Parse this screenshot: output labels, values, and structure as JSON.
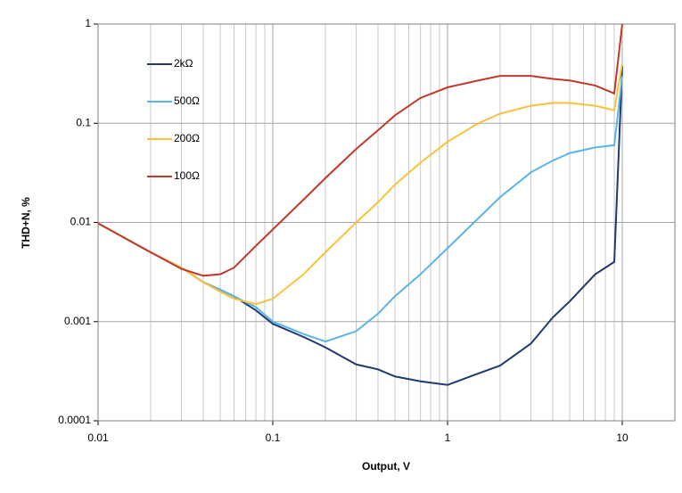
{
  "chart_data": {
    "type": "line",
    "log_x": true,
    "log_y": true,
    "grid": true,
    "x_minor_grid": true,
    "legend": "upper left",
    "xlabel": "Output, V",
    "ylabel": "THD+N, %",
    "xlim": [
      0.01,
      20
    ],
    "xticks": [
      0.01,
      0.1,
      1,
      10
    ],
    "ylim": [
      0.0001,
      1
    ],
    "yticks": [
      0.0001,
      0.001,
      0.01,
      0.1,
      1
    ],
    "x": [
      0.01,
      0.02,
      0.03,
      0.04,
      0.05,
      0.06,
      0.08,
      0.1,
      0.15,
      0.2,
      0.3,
      0.4,
      0.5,
      0.7,
      1,
      1.5,
      2,
      3,
      4,
      5,
      7,
      9,
      10
    ],
    "series": [
      {
        "name": "2kΩ",
        "color": "#1f3a6e",
        "values": [
          0.0098,
          0.005,
          0.0035,
          0.0025,
          0.0021,
          0.0018,
          0.0013,
          0.00095,
          0.0007,
          0.00055,
          0.00037,
          0.00033,
          0.00028,
          0.00025,
          0.00023,
          0.0003,
          0.00036,
          0.0006,
          0.0011,
          0.0016,
          0.003,
          0.004,
          0.38
        ]
      },
      {
        "name": "500Ω",
        "color": "#5bb4e5",
        "values": [
          0.0098,
          0.005,
          0.0035,
          0.0025,
          0.0021,
          0.0018,
          0.0014,
          0.001,
          0.00075,
          0.00063,
          0.0008,
          0.0012,
          0.0018,
          0.003,
          0.0055,
          0.011,
          0.018,
          0.032,
          0.042,
          0.05,
          0.057,
          0.06,
          0.3
        ]
      },
      {
        "name": "200Ω",
        "color": "#f9c23c",
        "values": [
          0.0098,
          0.005,
          0.0035,
          0.0025,
          0.002,
          0.0017,
          0.0015,
          0.0017,
          0.003,
          0.005,
          0.01,
          0.016,
          0.024,
          0.04,
          0.065,
          0.1,
          0.125,
          0.15,
          0.16,
          0.16,
          0.15,
          0.135,
          0.4
        ]
      },
      {
        "name": "100Ω",
        "color": "#c0392b",
        "values": [
          0.0098,
          0.005,
          0.0034,
          0.0029,
          0.003,
          0.0035,
          0.0058,
          0.0085,
          0.017,
          0.028,
          0.055,
          0.085,
          0.12,
          0.18,
          0.23,
          0.27,
          0.3,
          0.3,
          0.28,
          0.27,
          0.24,
          0.2,
          1
        ]
      }
    ]
  }
}
